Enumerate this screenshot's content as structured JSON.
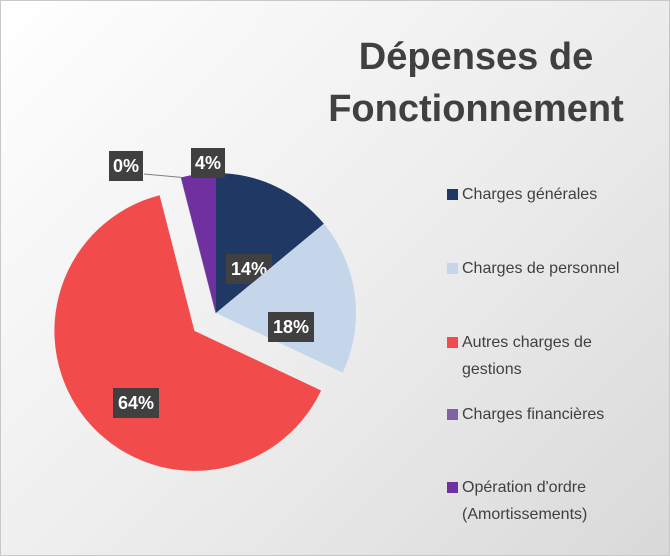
{
  "chart_data": {
    "type": "pie",
    "title": "Dépenses de Fonctionnement",
    "categories": [
      "Charges générales",
      "Charges de personnel",
      "Autres charges de gestions",
      "Charges financières",
      "Opération d'ordre (Amortissements)"
    ],
    "values": [
      14,
      18,
      64,
      0,
      4
    ],
    "value_labels": [
      "14%",
      "18%",
      "64%",
      "0%",
      "4%"
    ],
    "colors": [
      "#1f3864",
      "#c5d5ea",
      "#f24b4b",
      "#8064a2",
      "#7030a0"
    ],
    "legend": "right"
  }
}
